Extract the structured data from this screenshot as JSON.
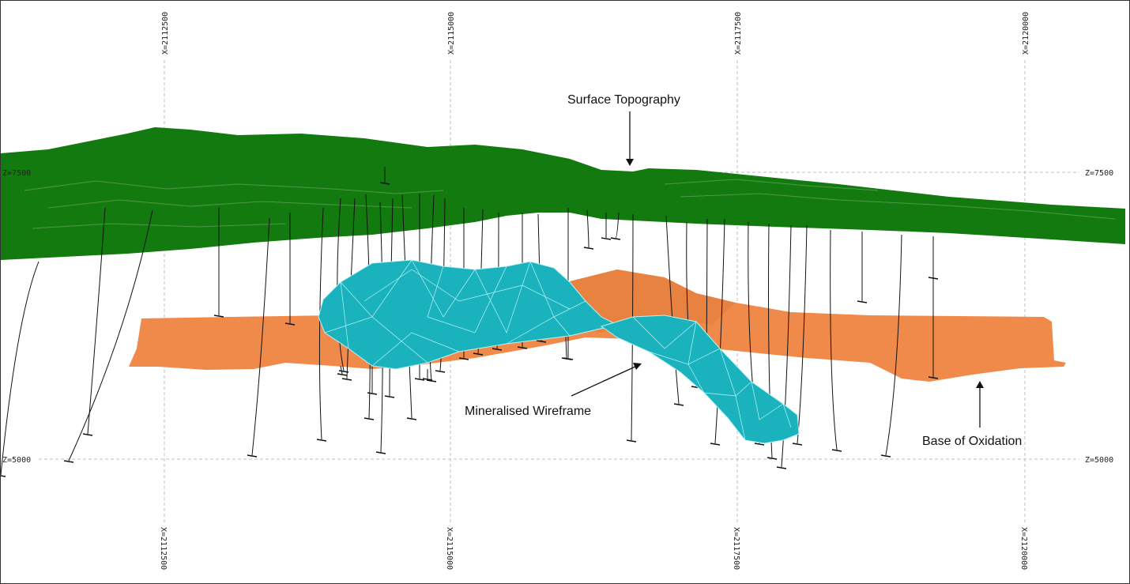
{
  "view": {
    "x_grid_labels": [
      "X=2112500",
      "X=2115000",
      "X=2117500",
      "X=2120000"
    ],
    "z_grid_labels": [
      "Z=7500",
      "Z=5000"
    ]
  },
  "annotations": {
    "surface_topography": "Surface Topography",
    "mineralised_wireframe": "Mineralised Wireframe",
    "base_of_oxidation": "Base of Oxidation"
  },
  "colors": {
    "topography": "#137a0f",
    "topography_dark": "#0e6409",
    "oxidation": "#f08a4b",
    "wireframe": "#19b2bd",
    "wireframe_edge": "#bdf3f7",
    "drillhole": "#111111",
    "grid": "#bfbfbf"
  },
  "icons": {
    "annotation_arrow": "arrow-icon"
  }
}
